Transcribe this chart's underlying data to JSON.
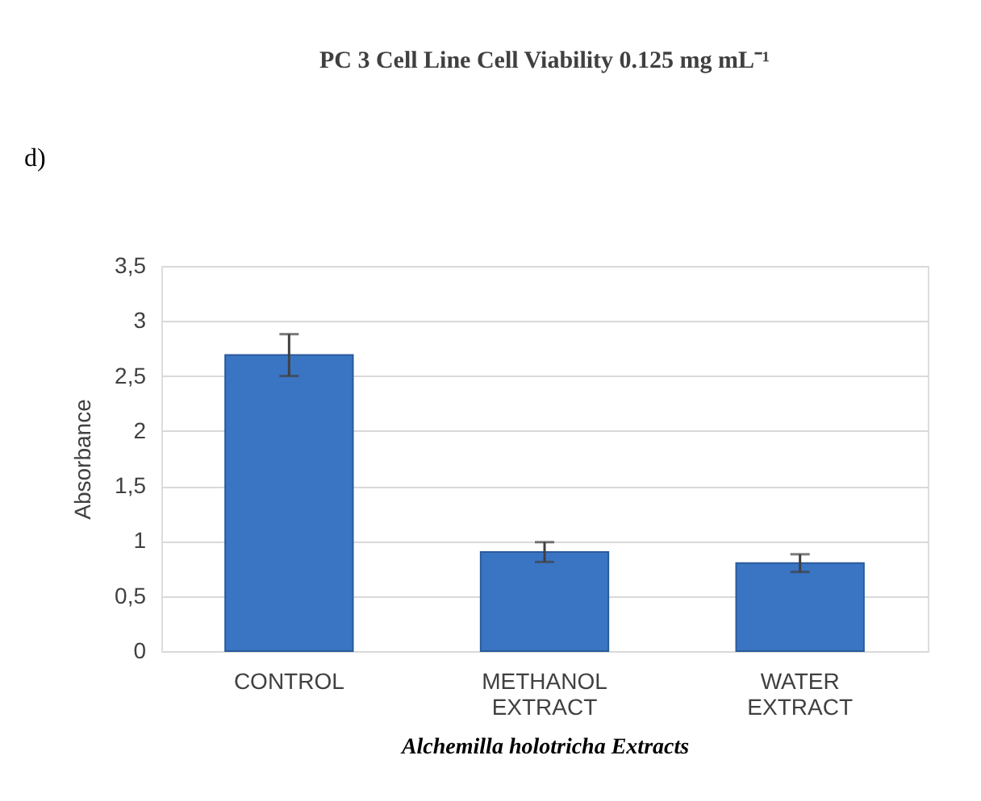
{
  "chart_data": {
    "type": "bar",
    "title": "PC 3 Cell Line Cell Viability 0.125 mg mL⁻¹",
    "xlabel": "Alchemilla holotricha Extracts",
    "ylabel": "Absorbance",
    "annotations": [
      "d)"
    ],
    "categories": [
      "CONTROL",
      "METHANOL EXTRACT",
      "WATER EXTRACT"
    ],
    "values": [
      2.69,
      0.9,
      0.8
    ],
    "errors": [
      0.19,
      0.09,
      0.08
    ],
    "color": "#3a75c4",
    "ylim": [
      0,
      3.5
    ],
    "yticks": [
      0,
      {
        "value": 0.5,
        "label": "0,5"
      },
      1,
      {
        "value": 1.5,
        "label": "1,5"
      },
      2,
      {
        "value": 2.5,
        "label": "2,5"
      },
      3,
      {
        "value": 3.5,
        "label": "3,5"
      }
    ],
    "grid": "y"
  }
}
